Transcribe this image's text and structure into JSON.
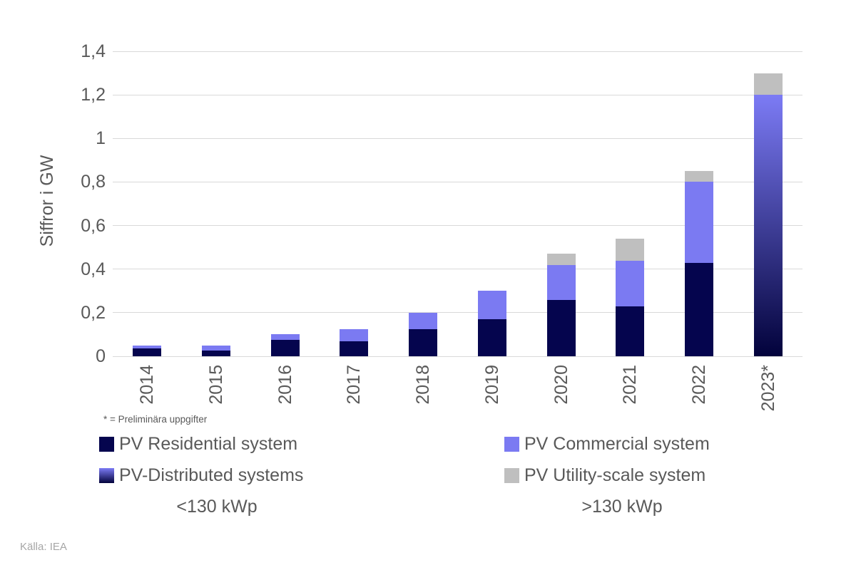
{
  "chart_data": {
    "type": "bar",
    "stacked": true,
    "title": "",
    "ylabel": "Siffror i GW",
    "xlabel": "",
    "ylim": [
      0,
      1.4
    ],
    "ytick_interval": 0.2,
    "ytick_labels": [
      "0",
      "0,2",
      "0,4",
      "0,6",
      "0,8",
      "1",
      "1,2",
      "1,4"
    ],
    "grid": true,
    "legend_position": "bottom",
    "categories": [
      "2014",
      "2015",
      "2016",
      "2017",
      "2018",
      "2019",
      "2020",
      "2021",
      "2022",
      "2023*"
    ],
    "series": [
      {
        "name": "PV Residential system",
        "color": "#05054e",
        "values": [
          0.035,
          0.025,
          0.075,
          0.07,
          0.125,
          0.17,
          0.26,
          0.23,
          0.43,
          0
        ]
      },
      {
        "name": "PV-Distributed systems",
        "gradient_top": "#7c7bf5",
        "gradient_bottom": "#02023b",
        "values": [
          0,
          0,
          0,
          0,
          0,
          0,
          0,
          0,
          0,
          1.2
        ]
      },
      {
        "name": "PV Commercial system",
        "color": "#7b7af2",
        "values": [
          0.015,
          0.025,
          0.025,
          0.055,
          0.075,
          0.13,
          0.16,
          0.21,
          0.37,
          0
        ]
      },
      {
        "name": "PV Utility-scale system",
        "color": "#bfbfbf",
        "values": [
          0,
          0,
          0,
          0,
          0,
          0,
          0.05,
          0.1,
          0.05,
          0.1
        ]
      }
    ]
  },
  "y_axis_title": "Siffror i GW",
  "footnote": "* = Preliminära uppgifter",
  "source": "Källa: IEA",
  "legend": {
    "left_column": {
      "items": [
        {
          "label": "PV Residential system",
          "swatch": "solid",
          "color": "#05054e"
        },
        {
          "label": "PV-Distributed systems",
          "swatch": "gradient",
          "color_top": "#7c7bf5",
          "color_bottom": "#02023b"
        }
      ],
      "size_label": "<130 kWp"
    },
    "right_column": {
      "items": [
        {
          "label": "PV Commercial system",
          "swatch": "solid",
          "color": "#7b7af2"
        },
        {
          "label": "PV Utility-scale system",
          "swatch": "solid",
          "color": "#bfbfbf"
        }
      ],
      "size_label": ">130 kWp"
    }
  },
  "colors": {
    "grid": "#d9d9d9",
    "axis_text": "#595959",
    "legend_text": "#595959",
    "footnote_text": "#595959",
    "source_text": "#a6a6a6"
  }
}
